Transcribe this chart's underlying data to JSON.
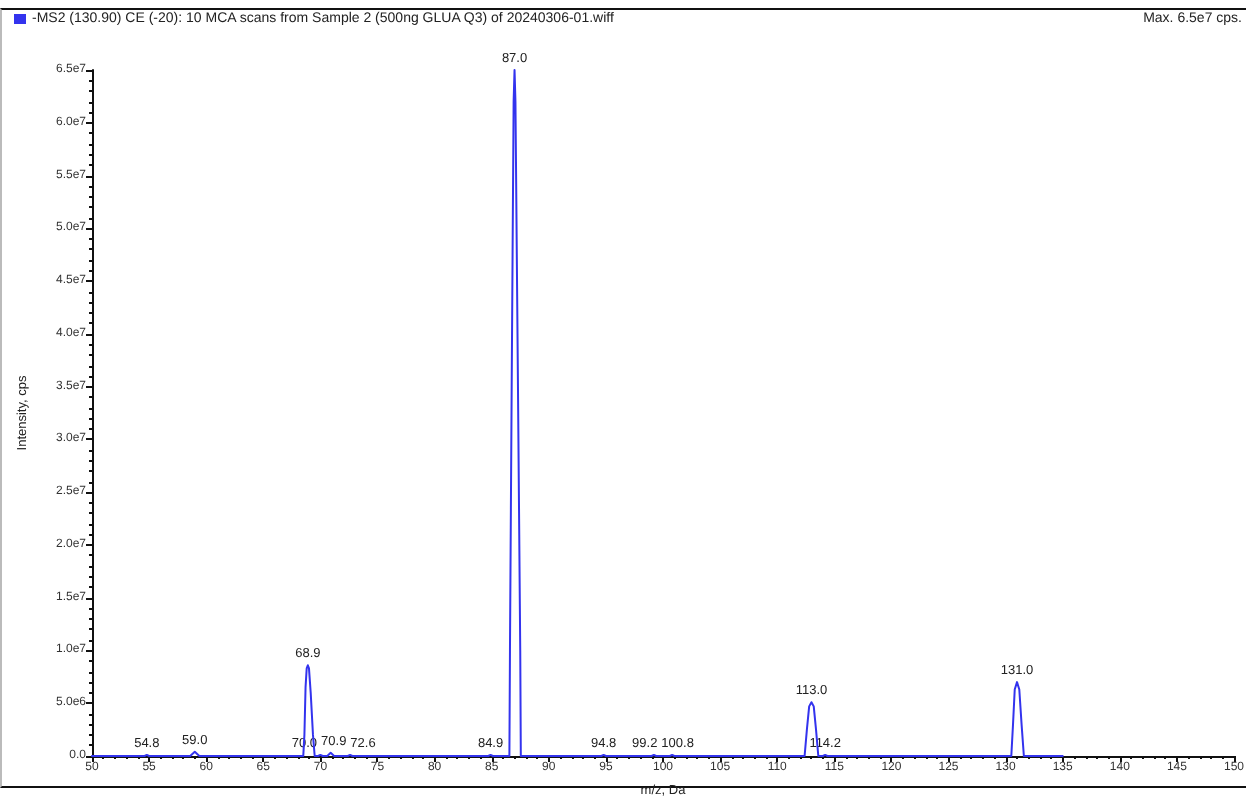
{
  "chart_data": {
    "type": "line",
    "title": "-MS2 (130.90) CE (-20): 10 MCA scans from Sample 2 (500ng GLUA Q3) of 20240306-01.wiff",
    "subtitle": "Max. 6.5e7 cps.",
    "xlabel": "m/z, Da",
    "ylabel": "Intensity, cps",
    "xlim": [
      50,
      150
    ],
    "xticks": [
      50,
      55,
      60,
      65,
      70,
      75,
      80,
      85,
      90,
      95,
      100,
      105,
      110,
      115,
      120,
      125,
      130,
      135,
      140,
      145,
      150
    ],
    "ylim": [
      0,
      65000000
    ],
    "yticks": [
      {
        "value": 0,
        "label": "0.0"
      },
      {
        "value": 5000000,
        "label": "5.0e6"
      },
      {
        "value": 10000000,
        "label": "1.0e7"
      },
      {
        "value": 15000000,
        "label": "1.5e7"
      },
      {
        "value": 20000000,
        "label": "2.0e7"
      },
      {
        "value": 25000000,
        "label": "2.5e7"
      },
      {
        "value": 30000000,
        "label": "3.0e7"
      },
      {
        "value": 35000000,
        "label": "3.5e7"
      },
      {
        "value": 40000000,
        "label": "4.0e7"
      },
      {
        "value": 45000000,
        "label": "4.5e7"
      },
      {
        "value": 50000000,
        "label": "5.0e7"
      },
      {
        "value": 55000000,
        "label": "5.5e7"
      },
      {
        "value": 60000000,
        "label": "6.0e7"
      },
      {
        "value": 65000000,
        "label": "6.5e7"
      }
    ],
    "series": [
      {
        "color": "#3333ee",
        "x": [
          50,
          54.6,
          54.8,
          55.0,
          58.6,
          59.0,
          59.4,
          68.5,
          68.6,
          68.7,
          68.8,
          68.9,
          69.0,
          69.15,
          69.35,
          69.5,
          69.8,
          70.0,
          70.2,
          70.6,
          70.9,
          71.2,
          72.4,
          72.6,
          72.8,
          84.7,
          84.9,
          85.1,
          86.55,
          86.6,
          86.75,
          86.92,
          87.0,
          87.08,
          87.3,
          87.5,
          87.55,
          94.6,
          94.8,
          95.0,
          99.0,
          99.2,
          99.4,
          100.6,
          100.8,
          101.0,
          112.4,
          112.6,
          112.8,
          113.0,
          113.2,
          113.4,
          113.6,
          114.0,
          114.2,
          114.4,
          130.5,
          130.65,
          130.8,
          131.0,
          131.2,
          131.4,
          131.6,
          135
        ],
        "values": [
          0,
          0,
          100000,
          0,
          0,
          400000,
          0,
          0,
          2000000,
          6500000,
          8300000,
          8600000,
          8300000,
          6000000,
          2000000,
          0,
          0,
          100000,
          0,
          0,
          300000,
          0,
          0,
          100000,
          0,
          0,
          100000,
          0,
          0,
          10000000,
          35000000,
          62000000,
          65000000,
          62000000,
          35000000,
          10000000,
          0,
          0,
          100000,
          0,
          0,
          100000,
          0,
          0,
          100000,
          0,
          0,
          2500000,
          4700000,
          5100000,
          4700000,
          2500000,
          0,
          0,
          100000,
          0,
          0,
          3000000,
          6300000,
          7000000,
          6300000,
          3000000,
          0,
          0
        ]
      }
    ],
    "annotations": [
      {
        "text": "54.8",
        "x": 54.8,
        "y": 100000
      },
      {
        "text": "59.0",
        "x": 59.0,
        "y": 400000
      },
      {
        "text": "68.9",
        "x": 68.9,
        "y": 8600000
      },
      {
        "text": "70.0",
        "x": 70.0,
        "y": 100000
      },
      {
        "text": "70.9",
        "x": 70.9,
        "y": 300000
      },
      {
        "text": "72.6",
        "x": 72.6,
        "y": 100000
      },
      {
        "text": "84.9",
        "x": 84.9,
        "y": 100000
      },
      {
        "text": "87.0",
        "x": 87.0,
        "y": 65000000
      },
      {
        "text": "94.8",
        "x": 94.8,
        "y": 100000
      },
      {
        "text": "99.2",
        "x": 99.2,
        "y": 100000
      },
      {
        "text": "100.8",
        "x": 100.8,
        "y": 100000
      },
      {
        "text": "113.0",
        "x": 113.0,
        "y": 5100000
      },
      {
        "text": "114.2",
        "x": 114.2,
        "y": 100000
      },
      {
        "text": "131.0",
        "x": 131.0,
        "y": 7000000
      }
    ]
  }
}
